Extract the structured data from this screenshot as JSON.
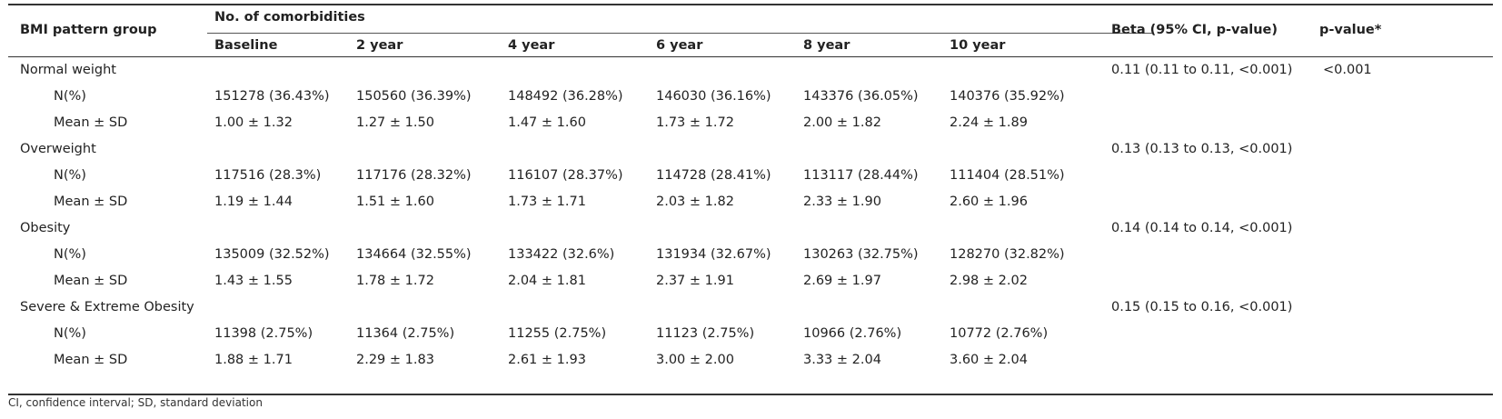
{
  "header": {
    "group_col": "BMI pattern group",
    "comorbidities": "No. of comorbidities",
    "timepoints": [
      "Baseline",
      "2 year",
      "4 year",
      "6 year",
      "8 year",
      "10 year"
    ],
    "beta": "Beta (95% CI, p-value)",
    "pvalue": "p-value*"
  },
  "groups": [
    {
      "name": "Normal weight",
      "beta": "0.11 (0.11 to 0.11, <0.001)",
      "pvalue": "<0.001",
      "n_label": "N(%)",
      "n": [
        "151278 (36.43%)",
        "150560 (36.39%)",
        "148492 (36.28%)",
        "146030 (36.16%)",
        "143376 (36.05%)",
        "140376 (35.92%)"
      ],
      "mean_label": "Mean ± SD",
      "mean": [
        "1.00 ± 1.32",
        "1.27 ± 1.50",
        "1.47 ± 1.60",
        "1.73 ± 1.72",
        "2.00 ± 1.82",
        "2.24 ± 1.89"
      ]
    },
    {
      "name": "Overweight",
      "beta": "0.13 (0.13 to 0.13, <0.001)",
      "pvalue": "",
      "n_label": "N(%)",
      "n": [
        "117516 (28.3%)",
        "117176 (28.32%)",
        "116107 (28.37%)",
        "114728 (28.41%)",
        "113117 (28.44%)",
        "111404 (28.51%)"
      ],
      "mean_label": "Mean ± SD",
      "mean": [
        "1.19 ± 1.44",
        "1.51 ± 1.60",
        "1.73 ± 1.71",
        "2.03 ± 1.82",
        "2.33 ± 1.90",
        "2.60 ± 1.96"
      ]
    },
    {
      "name": "Obesity",
      "beta": "0.14 (0.14 to 0.14, <0.001)",
      "pvalue": "",
      "n_label": "N(%)",
      "n": [
        "135009 (32.52%)",
        "134664 (32.55%)",
        "133422 (32.6%)",
        "131934 (32.67%)",
        "130263 (32.75%)",
        "128270 (32.82%)"
      ],
      "mean_label": "Mean ± SD",
      "mean": [
        "1.43 ± 1.55",
        "1.78 ± 1.72",
        "2.04 ± 1.81",
        "2.37 ± 1.91",
        "2.69 ± 1.97",
        "2.98 ± 2.02"
      ]
    },
    {
      "name": "Severe & Extreme Obesity",
      "beta": "0.15 (0.15 to 0.16, <0.001)",
      "pvalue": "",
      "n_label": "N(%)",
      "n": [
        "11398 (2.75%)",
        "11364 (2.75%)",
        "11255 (2.75%)",
        "11123 (2.75%)",
        "10966 (2.76%)",
        "10772 (2.76%)"
      ],
      "mean_label": "Mean ± SD",
      "mean": [
        "1.88 ± 1.71",
        "2.29 ± 1.83",
        "2.61 ± 1.93",
        "3.00 ± 2.00",
        "3.33 ± 2.04",
        "3.60 ± 2.04"
      ]
    }
  ],
  "footnote": "CI, confidence interval; SD, standard deviation"
}
